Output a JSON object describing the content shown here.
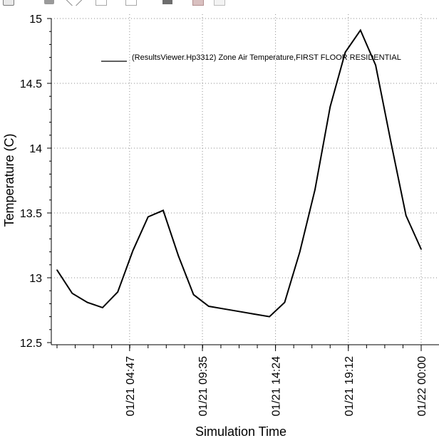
{
  "chart_data": {
    "type": "line",
    "title": "",
    "xlabel": "Simulation Time",
    "ylabel": "Temperature (C)",
    "ylim": [
      12.5,
      15
    ],
    "xlim_hours": [
      0,
      24
    ],
    "yticks": [
      "12.5",
      "13",
      "13.5",
      "14",
      "14.5",
      "15"
    ],
    "xticks": [
      {
        "label": "01/21 04:47",
        "hour": 4.7833
      },
      {
        "label": "01/21 09:35",
        "hour": 9.5833
      },
      {
        "label": "01/21 14:24",
        "hour": 14.4
      },
      {
        "label": "01/21 19:12",
        "hour": 19.2
      },
      {
        "label": "01/22 00:00",
        "hour": 24
      }
    ],
    "grid": true,
    "legend_position": "top-right",
    "series": [
      {
        "name": "(ResultsViewer.Hp3312) Zone Air Temperature,FIRST FLOOR RESIDENTIAL",
        "color": "#000000",
        "x": [
          0,
          1,
          2,
          3,
          4,
          5,
          6,
          7,
          8,
          9,
          10,
          11,
          12,
          13,
          14,
          15,
          16,
          17,
          18,
          19,
          20,
          21,
          22,
          23,
          24
        ],
        "y": [
          13.06,
          12.88,
          12.81,
          12.77,
          12.89,
          13.21,
          13.47,
          13.52,
          13.17,
          12.87,
          12.78,
          12.76,
          12.74,
          12.72,
          12.7,
          12.81,
          13.2,
          13.68,
          14.32,
          14.74,
          14.91,
          14.64,
          14.05,
          13.48,
          13.22
        ]
      }
    ]
  }
}
